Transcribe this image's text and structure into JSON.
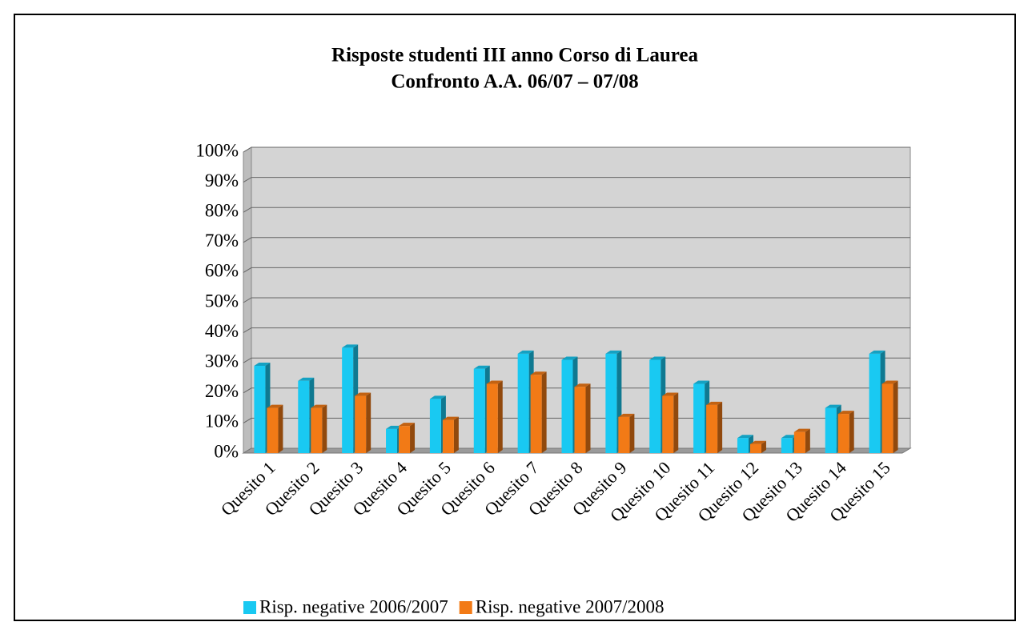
{
  "chart_data": {
    "type": "bar3d",
    "title": "Risposte studenti III anno Corso di Laurea",
    "subtitle": "Confronto A.A. 06/07 – 07/08",
    "categories": [
      "Quesito 1",
      "Quesito 2",
      "Quesito 3",
      "Quesito 4",
      "Quesito 5",
      "Quesito 6",
      "Quesito 7",
      "Quesito 8",
      "Quesito 9",
      "Quesito 10",
      "Quesito 11",
      "Quesito 12",
      "Quesito 13",
      "Quesito 14",
      "Quesito 15"
    ],
    "series": [
      {
        "name": "Risp. negative 2006/2007",
        "color": "#19c9f2",
        "values": [
          29,
          24,
          35,
          8,
          18,
          28,
          33,
          31,
          33,
          31,
          23,
          5,
          5,
          15,
          33
        ]
      },
      {
        "name": "Risp. negative 2007/2008",
        "color": "#f27a16",
        "values": [
          15,
          15,
          19,
          9,
          11,
          23,
          26,
          22,
          12,
          19,
          16,
          3,
          7,
          13,
          23
        ]
      }
    ],
    "ylim": [
      0,
      100
    ],
    "yticks": [
      {
        "value": 0,
        "label": "0%"
      },
      {
        "value": 10,
        "label": "10%"
      },
      {
        "value": 20,
        "label": "20%"
      },
      {
        "value": 30,
        "label": "30%"
      },
      {
        "value": 40,
        "label": "40%"
      },
      {
        "value": 50,
        "label": "50%"
      },
      {
        "value": 60,
        "label": "60%"
      },
      {
        "value": 70,
        "label": "70%"
      },
      {
        "value": 80,
        "label": "80%"
      },
      {
        "value": 90,
        "label": "90%"
      },
      {
        "value": 100,
        "label": "100%"
      }
    ],
    "grid": true
  }
}
